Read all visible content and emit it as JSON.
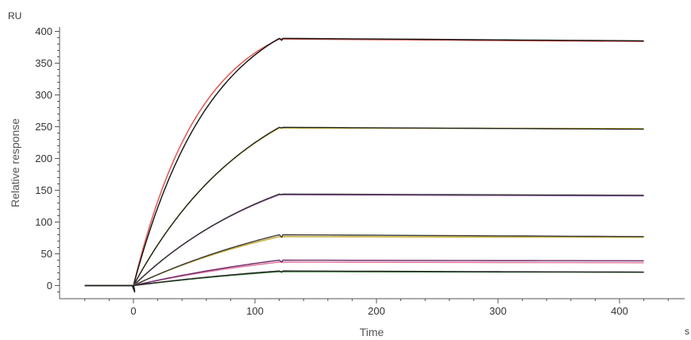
{
  "chart_data": {
    "type": "line",
    "title": "",
    "xlabel": "Time",
    "ylabel": "Relative response",
    "x_unit": "s",
    "y_unit": "RU",
    "xlim": [
      -50,
      450
    ],
    "ylim": [
      -15,
      405
    ],
    "x_ticks": [
      0,
      100,
      200,
      300,
      400
    ],
    "y_ticks": [
      0,
      50,
      100,
      150,
      200,
      250,
      300,
      350,
      400
    ],
    "grid": false,
    "legend": "none",
    "association_end_s": 120,
    "series": [
      {
        "role": "fit",
        "color": "#e0605a",
        "plateau": 388,
        "end": 384,
        "k": 0.018,
        "dip": 0
      },
      {
        "role": "measured",
        "color": "#111111",
        "plateau": 389,
        "end": 385,
        "k": 0.0155,
        "dip": 3
      },
      {
        "role": "fit",
        "color": "#d6c232",
        "plateau": 248,
        "end": 247,
        "k": 0.01,
        "dip": 0
      },
      {
        "role": "measured",
        "color": "#222222",
        "plateau": 249,
        "end": 246,
        "k": 0.0098,
        "dip": 1
      },
      {
        "role": "fit",
        "color": "#9b5fb0",
        "plateau": 143,
        "end": 141,
        "k": 0.008,
        "dip": 0
      },
      {
        "role": "measured",
        "color": "#333333",
        "plateau": 144,
        "end": 142,
        "k": 0.0078,
        "dip": 1
      },
      {
        "role": "fit",
        "color": "#c8b03a",
        "plateau": 77,
        "end": 76,
        "k": 0.006,
        "dip": 0
      },
      {
        "role": "measured",
        "color": "#3a3a3a",
        "plateau": 80,
        "end": 77,
        "k": 0.0055,
        "dip": 4
      },
      {
        "role": "fit",
        "color": "#e07aa0",
        "plateau": 37,
        "end": 36,
        "k": 0.0055,
        "dip": 0
      },
      {
        "role": "measured",
        "color": "#6a2a6a",
        "plateau": 40,
        "end": 39,
        "k": 0.005,
        "dip": 3
      },
      {
        "role": "fit",
        "color": "#3a8a3a",
        "plateau": 22,
        "end": 21,
        "k": 0.005,
        "dip": 0
      },
      {
        "role": "measured",
        "color": "#222222",
        "plateau": 23,
        "end": 21,
        "k": 0.0048,
        "dip": 2
      }
    ]
  }
}
